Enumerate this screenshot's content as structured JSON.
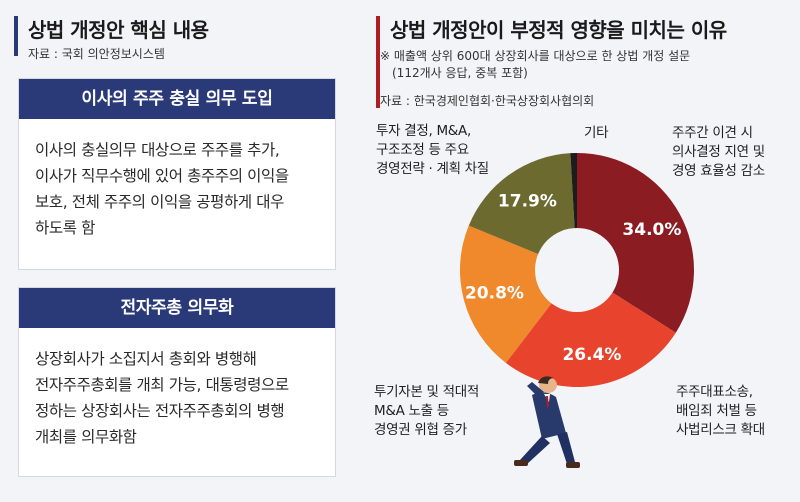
{
  "left": {
    "title": "상법 개정안 핵심 내용",
    "source": "자료 : 국회 의안정보시스템",
    "cards": [
      {
        "header": "이사의 주주 충실 의무 도입",
        "lines": [
          "이사의 충실의무 대상으로 주주를 추가,",
          "이사가 직무수행에 있어 총주주의 이익을",
          "보호, 전체 주주의 이익을 공평하게 대우",
          "하도록 함"
        ]
      },
      {
        "header": "전자주총 의무화",
        "lines": [
          "상장회사가 소집지서 총회와 병행해",
          "전자주주총회를 개최 가능, 대통령령으로",
          "정하는 상장회사는 전자주주총회의 병행",
          "개최를 의무화함"
        ]
      }
    ]
  },
  "right": {
    "title": "상법 개정안이 부정적 영향을 미치는 이유",
    "note_lines": [
      "※ 매출액 상위 600대 상장회사를 대상으로 한 상법 개정 설문",
      "(112개사 응답, 중복 포함)"
    ],
    "source": "자료 : 한국경제인협회·한국상장회사협의회"
  },
  "colors": {
    "title_bar_left": "#2a3a78",
    "title_bar_right": "#b01e23",
    "card_header": "#2a3a78",
    "donut_hole": "#f3f4f7"
  },
  "chart_data": {
    "type": "pie",
    "variant": "donut",
    "title": "상법 개정안이 부정적 영향을 미치는 이유",
    "unit": "%",
    "slices": [
      {
        "label_lines": [
          "주주간 이견 시",
          "의사결정 지연 및",
          "경영 효율성 감소"
        ],
        "value": 34.0,
        "display": "34.0%",
        "color": "#8b1c22"
      },
      {
        "label_lines": [
          "주주대표소송,",
          "배임죄 처벌 등",
          "사법리스크 확대"
        ],
        "value": 26.4,
        "display": "26.4%",
        "color": "#e8432c"
      },
      {
        "label_lines": [
          "투기자본 및 적대적",
          "M&A 노출 등",
          "경영권 위협 증가"
        ],
        "value": 20.8,
        "display": "20.8%",
        "color": "#f0882c"
      },
      {
        "label_lines": [
          "투자 결정, M&A,",
          "구조조정 등 주요",
          "경영전략 · 계획 차질"
        ],
        "value": 17.9,
        "display": "17.9%",
        "color": "#6d6a30"
      },
      {
        "label_lines": [
          "기타"
        ],
        "value": 0.9,
        "display": "",
        "color": "#1c1c1c"
      }
    ]
  }
}
